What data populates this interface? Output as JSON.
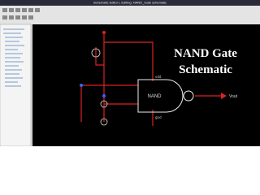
{
  "window": {
    "title": "Schematic Editor L Editing: NAND_Gate schematic"
  },
  "overlay": {
    "line1": "NAND Gate",
    "line2": "Schematic"
  },
  "schematic": {
    "gate_label": "NAND",
    "output_label": "Vout",
    "supply_label": "vdd",
    "ground_label": "gnd"
  }
}
